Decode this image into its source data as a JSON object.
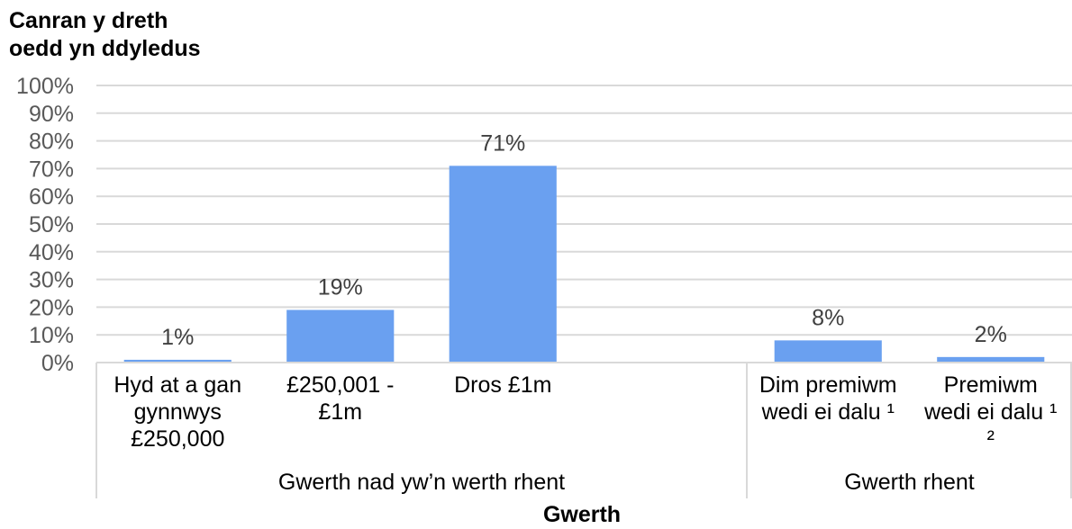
{
  "chart_data": {
    "type": "bar",
    "title": "",
    "ylabel": "Canran y dreth\noedd yn ddyledus",
    "xlabel": "Gwerth",
    "ylim": [
      0,
      100
    ],
    "yticks": [
      "0%",
      "10%",
      "20%",
      "30%",
      "40%",
      "50%",
      "60%",
      "70%",
      "80%",
      "90%",
      "100%"
    ],
    "grid": true,
    "bar_color": "#6aa0f0",
    "groups": [
      {
        "label": "Gwerth nad yw’n werth rhent",
        "categories": [
          {
            "label": "Hyd at a gan gynnwys £250,000",
            "lines": [
              "Hyd at a gan",
              "gynnwys",
              "£250,000"
            ],
            "value": 1,
            "data_label": "1%"
          },
          {
            "label": "£250,001 - £1m",
            "lines": [
              "£250,001 -",
              "£1m"
            ],
            "value": 19,
            "data_label": "19%"
          },
          {
            "label": "Dros £1m",
            "lines": [
              "Dros £1m"
            ],
            "value": 71,
            "data_label": "71%"
          },
          {
            "label": "",
            "lines": [],
            "value": null,
            "data_label": ""
          }
        ]
      },
      {
        "label": "Gwerth rhent",
        "categories": [
          {
            "label": "Dim premiwm wedi ei dalu ¹",
            "lines": [
              "Dim premiwm",
              "wedi ei dalu ¹"
            ],
            "value": 8,
            "data_label": "8%"
          },
          {
            "label": "Premiwm wedi ei dalu ¹ ²",
            "lines": [
              "Premiwm",
              "wedi ei dalu ¹",
              "²"
            ],
            "value": 2,
            "data_label": "2%"
          }
        ]
      }
    ]
  }
}
